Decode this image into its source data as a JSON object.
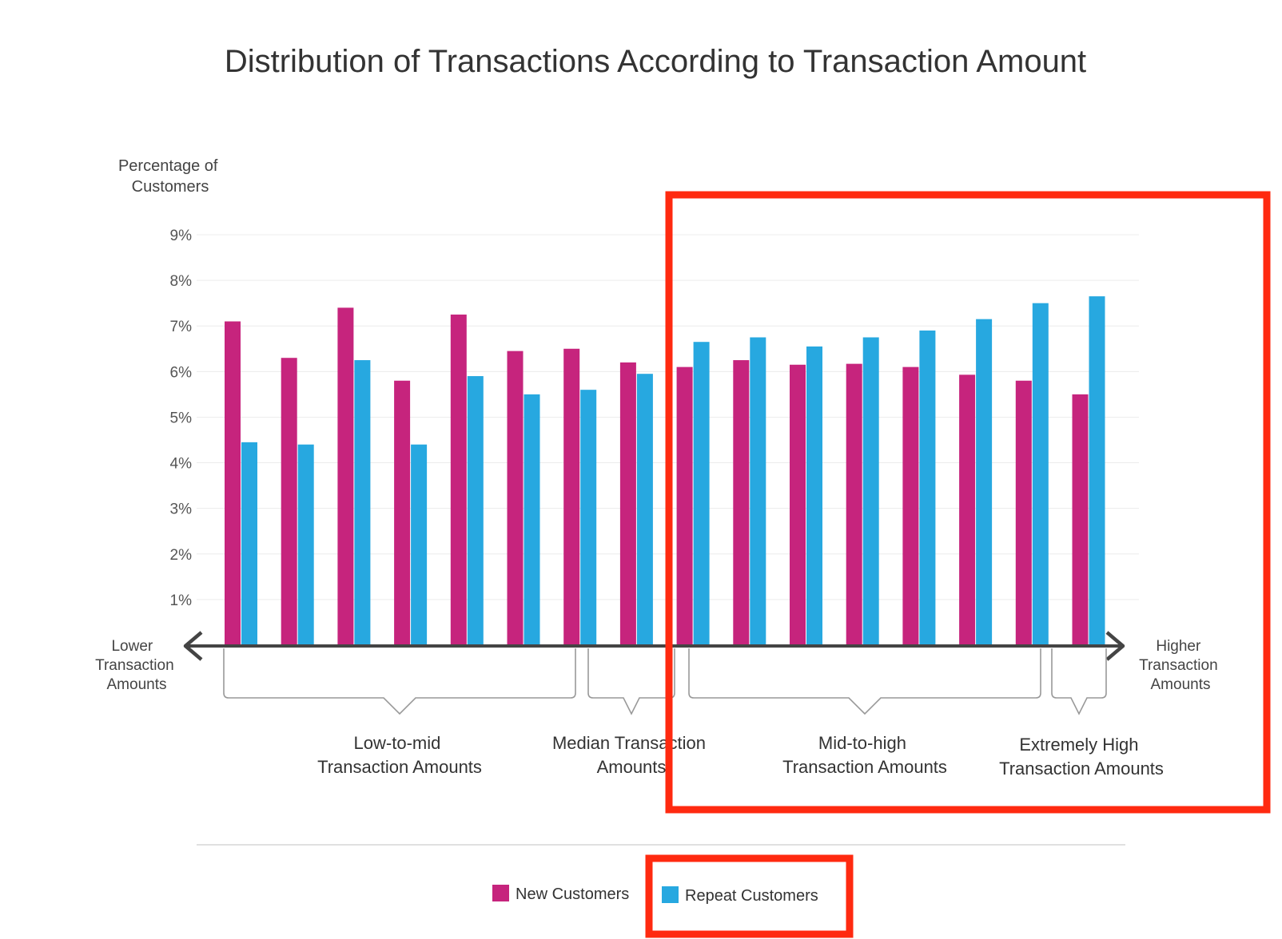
{
  "chart_data": {
    "type": "bar",
    "title": "Distribution of Transactions According to Transaction Amount",
    "ylabel": [
      "Percentage of",
      "Customers"
    ],
    "xlabel": "",
    "ylim": [
      0,
      9
    ],
    "yticks": [
      "1%",
      "2%",
      "3%",
      "4%",
      "5%",
      "6%",
      "7%",
      "8%",
      "9%"
    ],
    "grid": true,
    "x_axis_left_label": [
      "Lower",
      "Transaction",
      "Amounts"
    ],
    "x_axis_right_label": [
      "Higher",
      "Transaction",
      "Amounts"
    ],
    "bin_count": 16,
    "series": [
      {
        "name": "New Customers",
        "color": "#c6247d",
        "values": [
          7.1,
          6.3,
          7.4,
          5.8,
          7.25,
          6.45,
          6.5,
          6.2,
          6.1,
          6.25,
          6.15,
          6.17,
          6.1,
          5.93,
          5.8,
          5.5
        ]
      },
      {
        "name": "Repeat Customers",
        "color": "#27a8e0",
        "values": [
          4.45,
          4.4,
          6.25,
          4.4,
          5.9,
          5.5,
          5.6,
          5.95,
          6.65,
          6.75,
          6.55,
          6.75,
          6.9,
          7.15,
          7.5,
          7.65
        ]
      }
    ],
    "groups": [
      {
        "label": [
          "Low-to-mid",
          "Transaction Amounts"
        ],
        "from": 0,
        "to": 6
      },
      {
        "label": [
          "Median Transaction",
          "Amounts"
        ],
        "from": 7,
        "to": 8
      },
      {
        "label": [
          "Mid-to-high",
          "Transaction Amounts"
        ],
        "from": 8,
        "to": 14
      },
      {
        "label": [
          "Extremely High",
          "Transaction Amounts"
        ],
        "from": 15,
        "to": 15
      }
    ],
    "legend": {
      "placement": "bottom-center",
      "items": [
        "New Customers",
        "Repeat Customers"
      ]
    },
    "highlight_color": "#ff2a10"
  }
}
